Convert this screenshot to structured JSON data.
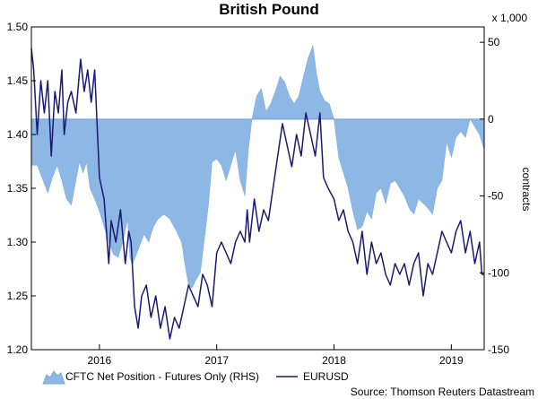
{
  "chart_data": {
    "type": "line",
    "title": "British Pound",
    "left_axis": {
      "ylim": [
        1.2,
        1.5
      ],
      "ticks": [
        "1.20",
        "1.25",
        "1.30",
        "1.35",
        "1.40",
        "1.45",
        "1.50"
      ]
    },
    "right_axis": {
      "label": "contracts",
      "multiplier": "x 1,000",
      "ylim": [
        -150,
        60
      ],
      "ticks": [
        "-150",
        "-100",
        "-50",
        "0",
        "50"
      ]
    },
    "x_axis": {
      "range": [
        2015.42,
        2019.28
      ],
      "tick_labels": [
        "2016",
        "2017",
        "2018",
        "2019"
      ],
      "tick_label_positions": [
        2016.0,
        2017.0,
        2018.0,
        2019.0
      ]
    },
    "series": [
      {
        "name": "CFTC Net Position - Futures Only (RHS)",
        "kind": "area",
        "axis": "right",
        "color": "#8db8e6",
        "points": [
          [
            2015.42,
            -30
          ],
          [
            2015.47,
            -30
          ],
          [
            2015.52,
            -40
          ],
          [
            2015.56,
            -48
          ],
          [
            2015.6,
            -38
          ],
          [
            2015.64,
            -30
          ],
          [
            2015.68,
            -40
          ],
          [
            2015.72,
            -52
          ],
          [
            2015.76,
            -56
          ],
          [
            2015.8,
            -40
          ],
          [
            2015.83,
            -28
          ],
          [
            2015.86,
            -35
          ],
          [
            2015.89,
            -28
          ],
          [
            2015.92,
            -45
          ],
          [
            2015.96,
            -52
          ],
          [
            2016.0,
            -60
          ],
          [
            2016.04,
            -70
          ],
          [
            2016.08,
            -80
          ],
          [
            2016.12,
            -88
          ],
          [
            2016.16,
            -90
          ],
          [
            2016.2,
            -80
          ],
          [
            2016.24,
            -65
          ],
          [
            2016.26,
            -90
          ],
          [
            2016.28,
            -95
          ],
          [
            2016.33,
            -85
          ],
          [
            2016.38,
            -75
          ],
          [
            2016.42,
            -80
          ],
          [
            2016.46,
            -70
          ],
          [
            2016.5,
            -65
          ],
          [
            2016.55,
            -62
          ],
          [
            2016.6,
            -65
          ],
          [
            2016.65,
            -72
          ],
          [
            2016.7,
            -80
          ],
          [
            2016.73,
            -95
          ],
          [
            2016.76,
            -108
          ],
          [
            2016.79,
            -110
          ],
          [
            2016.82,
            -105
          ],
          [
            2016.86,
            -100
          ],
          [
            2016.9,
            -75
          ],
          [
            2016.93,
            -55
          ],
          [
            2016.96,
            -28
          ],
          [
            2017.0,
            -26
          ],
          [
            2017.04,
            -30
          ],
          [
            2017.08,
            -40
          ],
          [
            2017.12,
            -30
          ],
          [
            2017.16,
            -20
          ],
          [
            2017.2,
            -40
          ],
          [
            2017.24,
            -50
          ],
          [
            2017.27,
            -20
          ],
          [
            2017.3,
            0
          ],
          [
            2017.34,
            15
          ],
          [
            2017.38,
            20
          ],
          [
            2017.42,
            5
          ],
          [
            2017.46,
            10
          ],
          [
            2017.5,
            18
          ],
          [
            2017.54,
            28
          ],
          [
            2017.58,
            24
          ],
          [
            2017.62,
            15
          ],
          [
            2017.66,
            10
          ],
          [
            2017.7,
            15
          ],
          [
            2017.74,
            28
          ],
          [
            2017.78,
            40
          ],
          [
            2017.82,
            48
          ],
          [
            2017.85,
            30
          ],
          [
            2017.88,
            18
          ],
          [
            2017.92,
            12
          ],
          [
            2017.96,
            10
          ],
          [
            2018.0,
            0
          ],
          [
            2018.04,
            -25
          ],
          [
            2018.08,
            -35
          ],
          [
            2018.12,
            -45
          ],
          [
            2018.16,
            -60
          ],
          [
            2018.2,
            -72
          ],
          [
            2018.24,
            -70
          ],
          [
            2018.28,
            -60
          ],
          [
            2018.32,
            -65
          ],
          [
            2018.36,
            -48
          ],
          [
            2018.4,
            -45
          ],
          [
            2018.44,
            -55
          ],
          [
            2018.48,
            -42
          ],
          [
            2018.52,
            -40
          ],
          [
            2018.56,
            -45
          ],
          [
            2018.6,
            -50
          ],
          [
            2018.64,
            -58
          ],
          [
            2018.68,
            -62
          ],
          [
            2018.72,
            -52
          ],
          [
            2018.76,
            -55
          ],
          [
            2018.8,
            -58
          ],
          [
            2018.84,
            -62
          ],
          [
            2018.88,
            -45
          ],
          [
            2018.92,
            -40
          ],
          [
            2018.96,
            -15
          ],
          [
            2019.0,
            -25
          ],
          [
            2019.04,
            -12
          ],
          [
            2019.08,
            -8
          ],
          [
            2019.12,
            -12
          ],
          [
            2019.16,
            0
          ],
          [
            2019.2,
            -5
          ],
          [
            2019.24,
            -10
          ],
          [
            2019.28,
            -20
          ]
        ]
      },
      {
        "name": "EURUSD",
        "kind": "line",
        "axis": "left",
        "color": "#1a1a6e",
        "points": [
          [
            2015.42,
            1.48
          ],
          [
            2015.44,
            1.46
          ],
          [
            2015.47,
            1.4
          ],
          [
            2015.5,
            1.45
          ],
          [
            2015.53,
            1.42
          ],
          [
            2015.56,
            1.45
          ],
          [
            2015.59,
            1.38
          ],
          [
            2015.62,
            1.44
          ],
          [
            2015.65,
            1.42
          ],
          [
            2015.68,
            1.46
          ],
          [
            2015.7,
            1.4
          ],
          [
            2015.73,
            1.43
          ],
          [
            2015.76,
            1.44
          ],
          [
            2015.8,
            1.42
          ],
          [
            2015.84,
            1.47
          ],
          [
            2015.87,
            1.44
          ],
          [
            2015.9,
            1.46
          ],
          [
            2015.93,
            1.43
          ],
          [
            2015.96,
            1.46
          ],
          [
            2016.0,
            1.36
          ],
          [
            2016.04,
            1.34
          ],
          [
            2016.08,
            1.28
          ],
          [
            2016.1,
            1.32
          ],
          [
            2016.14,
            1.3
          ],
          [
            2016.18,
            1.33
          ],
          [
            2016.22,
            1.28
          ],
          [
            2016.25,
            1.31
          ],
          [
            2016.27,
            1.3
          ],
          [
            2016.3,
            1.24
          ],
          [
            2016.33,
            1.22
          ],
          [
            2016.36,
            1.25
          ],
          [
            2016.4,
            1.26
          ],
          [
            2016.44,
            1.23
          ],
          [
            2016.48,
            1.25
          ],
          [
            2016.52,
            1.22
          ],
          [
            2016.56,
            1.24
          ],
          [
            2016.6,
            1.21
          ],
          [
            2016.64,
            1.23
          ],
          [
            2016.68,
            1.22
          ],
          [
            2016.72,
            1.24
          ],
          [
            2016.76,
            1.26
          ],
          [
            2016.8,
            1.25
          ],
          [
            2016.84,
            1.24
          ],
          [
            2016.88,
            1.27
          ],
          [
            2016.92,
            1.26
          ],
          [
            2016.96,
            1.24
          ],
          [
            2017.0,
            1.29
          ],
          [
            2017.04,
            1.3
          ],
          [
            2017.08,
            1.29
          ],
          [
            2017.12,
            1.28
          ],
          [
            2017.16,
            1.3
          ],
          [
            2017.2,
            1.31
          ],
          [
            2017.24,
            1.3
          ],
          [
            2017.26,
            1.33
          ],
          [
            2017.28,
            1.3
          ],
          [
            2017.32,
            1.34
          ],
          [
            2017.36,
            1.31
          ],
          [
            2017.4,
            1.33
          ],
          [
            2017.44,
            1.32
          ],
          [
            2017.48,
            1.35
          ],
          [
            2017.52,
            1.38
          ],
          [
            2017.56,
            1.41
          ],
          [
            2017.6,
            1.39
          ],
          [
            2017.64,
            1.37
          ],
          [
            2017.68,
            1.4
          ],
          [
            2017.72,
            1.38
          ],
          [
            2017.76,
            1.42
          ],
          [
            2017.8,
            1.4
          ],
          [
            2017.84,
            1.38
          ],
          [
            2017.88,
            1.42
          ],
          [
            2017.91,
            1.36
          ],
          [
            2017.95,
            1.35
          ],
          [
            2018.0,
            1.34
          ],
          [
            2018.04,
            1.32
          ],
          [
            2018.08,
            1.33
          ],
          [
            2018.12,
            1.31
          ],
          [
            2018.16,
            1.3
          ],
          [
            2018.2,
            1.28
          ],
          [
            2018.24,
            1.31
          ],
          [
            2018.28,
            1.27
          ],
          [
            2018.32,
            1.3
          ],
          [
            2018.36,
            1.28
          ],
          [
            2018.4,
            1.29
          ],
          [
            2018.44,
            1.27
          ],
          [
            2018.48,
            1.26
          ],
          [
            2018.52,
            1.28
          ],
          [
            2018.56,
            1.27
          ],
          [
            2018.6,
            1.28
          ],
          [
            2018.64,
            1.26
          ],
          [
            2018.68,
            1.28
          ],
          [
            2018.72,
            1.29
          ],
          [
            2018.76,
            1.25
          ],
          [
            2018.8,
            1.28
          ],
          [
            2018.84,
            1.27
          ],
          [
            2018.88,
            1.29
          ],
          [
            2018.92,
            1.31
          ],
          [
            2018.96,
            1.3
          ],
          [
            2019.0,
            1.29
          ],
          [
            2019.04,
            1.31
          ],
          [
            2019.08,
            1.32
          ],
          [
            2019.12,
            1.29
          ],
          [
            2019.16,
            1.31
          ],
          [
            2019.2,
            1.28
          ],
          [
            2019.24,
            1.3
          ],
          [
            2019.26,
            1.27
          ],
          [
            2019.28,
            1.27
          ]
        ]
      }
    ],
    "legend": {
      "placement": "bottom-left",
      "items": [
        "CFTC Net Position - Futures Only (RHS)",
        "EURUSD"
      ]
    },
    "source": "Source: Thomson Reuters Datastream"
  }
}
